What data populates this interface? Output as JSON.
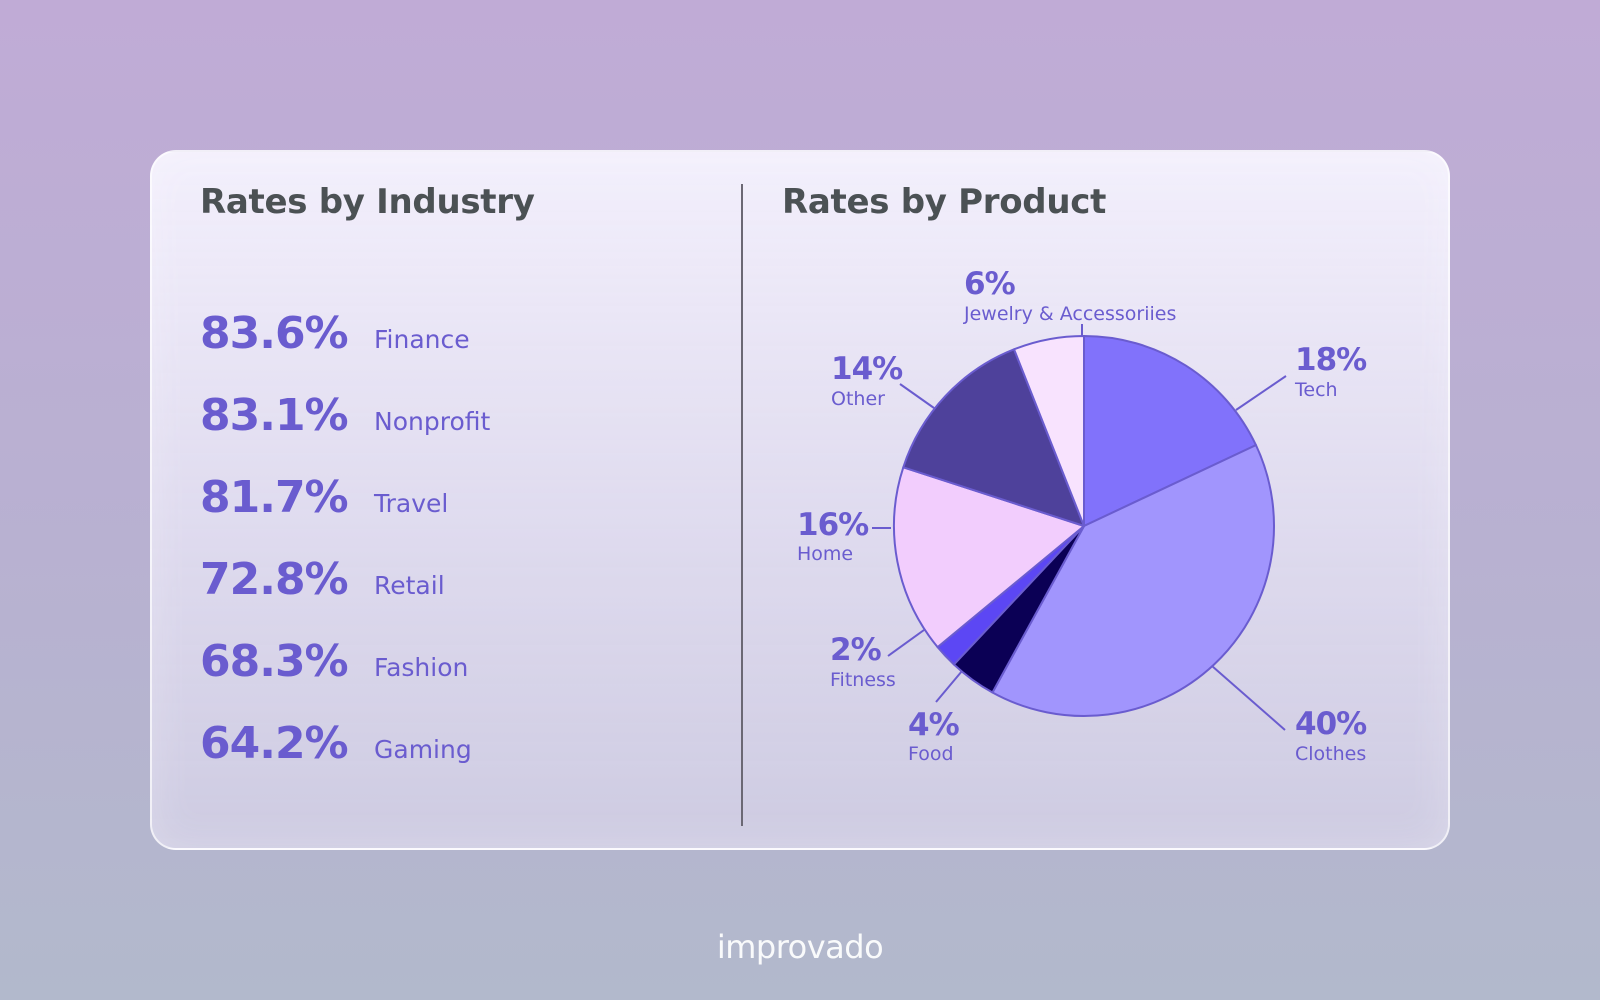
{
  "left_panel": {
    "title": "Rates by Industry",
    "rows": [
      {
        "value": "83.6%",
        "name": "Finance"
      },
      {
        "value": "83.1%",
        "name": "Nonprofit"
      },
      {
        "value": "81.7%",
        "name": "Travel"
      },
      {
        "value": "72.8%",
        "name": "Retail"
      },
      {
        "value": "68.3%",
        "name": "Fashion"
      },
      {
        "value": "64.2%",
        "name": "Gaming"
      }
    ]
  },
  "chart_data": {
    "type": "pie",
    "title": "Rates by Product",
    "slices": [
      {
        "name": "Tech",
        "value": 18,
        "label": "18%",
        "color": "#8172fb"
      },
      {
        "name": "Clothes",
        "value": 40,
        "label": "40%",
        "color": "#a195fd"
      },
      {
        "name": "Food",
        "value": 4,
        "label": "4%",
        "color": "#0b0055"
      },
      {
        "name": "Fitness",
        "value": 2,
        "label": "2%",
        "color": "#5c47f4"
      },
      {
        "name": "Home",
        "value": 16,
        "label": "16%",
        "color": "#f2cdfd"
      },
      {
        "name": "Other",
        "value": 14,
        "label": "14%",
        "color": "#4e419b"
      },
      {
        "name": "Jewelry & Accessoriies",
        "value": 6,
        "label": "6%",
        "color": "#f8e3fe"
      }
    ],
    "outline_color": "#6a5ccf",
    "label_color": "#6a5ccf"
  },
  "brand": {
    "text": "improvado"
  }
}
